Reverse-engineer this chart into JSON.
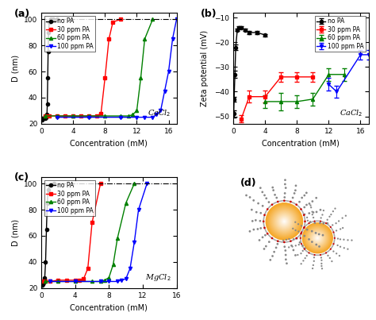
{
  "panel_a": {
    "title": "(a)",
    "xlabel": "Concentration (mM)",
    "ylabel": "D (nm)",
    "xlim": [
      0,
      17
    ],
    "ylim": [
      20,
      105
    ],
    "yticks": [
      20,
      40,
      60,
      80,
      100
    ],
    "xticks": [
      0,
      4,
      8,
      12,
      16
    ],
    "hline": 100,
    "label": "CaCl$_2$",
    "series": {
      "no_PA": {
        "color": "black",
        "marker": "o",
        "x": [
          0.05,
          0.1,
          0.2,
          0.3,
          0.5,
          0.6,
          0.7,
          0.75,
          0.8,
          0.85,
          0.9,
          1.0,
          1.2,
          1.5,
          2.0
        ],
        "y": [
          24,
          23,
          24,
          24,
          24,
          25,
          27,
          35,
          55,
          75,
          90,
          98,
          100,
          100,
          100
        ]
      },
      "30ppm": {
        "color": "red",
        "marker": "s",
        "x": [
          0.5,
          1.0,
          2.0,
          3.0,
          4.0,
          5.0,
          6.0,
          7.0,
          7.5,
          8.0,
          8.5,
          9.0,
          10.0
        ],
        "y": [
          26,
          26,
          26,
          26,
          26,
          26,
          26,
          26,
          28,
          55,
          85,
          98,
          100
        ]
      },
      "60ppm": {
        "color": "green",
        "marker": "^",
        "x": [
          0.5,
          2.0,
          4.0,
          6.0,
          8.0,
          10.0,
          11.0,
          11.5,
          12.0,
          12.5,
          13.0,
          14.0
        ],
        "y": [
          26,
          26,
          26,
          26,
          26,
          26,
          26,
          27,
          30,
          55,
          85,
          100
        ]
      },
      "100ppm": {
        "color": "blue",
        "marker": "v",
        "x": [
          2.0,
          6.0,
          10.0,
          12.0,
          13.0,
          14.0,
          14.5,
          15.0,
          15.5,
          16.0,
          16.5,
          17.0
        ],
        "y": [
          25,
          25,
          25,
          25,
          25,
          25,
          27,
          30,
          45,
          60,
          85,
          100
        ]
      }
    }
  },
  "panel_b": {
    "title": "(b)",
    "xlabel": "Concentration (mM)",
    "ylabel": "Zeta potential (mV)",
    "xlim": [
      0,
      17
    ],
    "ylim": [
      -53,
      -8
    ],
    "yticks": [
      -50,
      -40,
      -30,
      -20,
      -10
    ],
    "yticklabels": [
      "-50",
      "-40",
      "-30",
      "-20",
      "-10"
    ],
    "xticks": [
      0,
      4,
      8,
      12,
      16
    ],
    "label": "CaCl$_2$",
    "series": {
      "no_PA": {
        "color": "black",
        "marker": "o",
        "x": [
          0.05,
          0.1,
          0.2,
          0.3,
          0.5,
          0.7,
          1.0,
          1.5,
          2.0,
          3.0,
          4.0
        ],
        "y": [
          -49,
          -43,
          -33,
          -22,
          -15,
          -14,
          -14,
          -15,
          -16,
          -16,
          -17
        ],
        "yerr": [
          1.5,
          1.0,
          1.5,
          1.0,
          0.5,
          0.5,
          0.5,
          0.5,
          0.5,
          0.5,
          0.5
        ]
      },
      "30ppm": {
        "color": "red",
        "marker": "s",
        "x": [
          1.0,
          2.0,
          4.0,
          6.0,
          8.0,
          10.0
        ],
        "y": [
          -51,
          -42,
          -42,
          -34,
          -34,
          -34
        ],
        "yerr": [
          1.5,
          2.5,
          2.5,
          2.0,
          2.0,
          2.0
        ]
      },
      "60ppm": {
        "color": "green",
        "marker": "^",
        "x": [
          4.0,
          6.0,
          8.0,
          10.0,
          12.0,
          14.0
        ],
        "y": [
          -44,
          -44,
          -44,
          -43,
          -33,
          -33
        ],
        "yerr": [
          2.5,
          3.5,
          2.5,
          2.5,
          2.5,
          2.5
        ]
      },
      "100ppm": {
        "color": "blue",
        "marker": "v",
        "x": [
          12.0,
          13.0,
          16.0,
          17.0
        ],
        "y": [
          -37,
          -40,
          -25,
          -25
        ],
        "yerr": [
          2.5,
          2.5,
          2.0,
          2.0
        ]
      }
    }
  },
  "panel_c": {
    "title": "(c)",
    "xlabel": "Concentration (mM)",
    "ylabel": "D (nm)",
    "xlim": [
      0,
      16
    ],
    "ylim": [
      20,
      105
    ],
    "yticks": [
      20,
      40,
      60,
      80,
      100
    ],
    "xticks": [
      0,
      4,
      8,
      12,
      16
    ],
    "hline": 100,
    "label": "MgCl$_2$",
    "series": {
      "no_PA": {
        "color": "black",
        "marker": "o",
        "x": [
          0.05,
          0.1,
          0.2,
          0.3,
          0.4,
          0.5,
          0.6,
          0.7,
          0.8,
          1.0,
          1.5
        ],
        "y": [
          22,
          22,
          23,
          24,
          28,
          40,
          65,
          85,
          95,
          99,
          100
        ]
      },
      "30ppm": {
        "color": "red",
        "marker": "s",
        "x": [
          0.2,
          0.5,
          1.0,
          2.0,
          3.0,
          4.0,
          4.5,
          5.0,
          5.5,
          6.0,
          7.0
        ],
        "y": [
          25,
          25,
          25,
          26,
          26,
          26,
          26,
          27,
          35,
          70,
          100
        ]
      },
      "60ppm": {
        "color": "green",
        "marker": "^",
        "x": [
          0.5,
          2.0,
          4.0,
          6.0,
          7.0,
          7.5,
          8.0,
          8.5,
          9.0,
          10.0,
          11.0
        ],
        "y": [
          25,
          25,
          25,
          25,
          25,
          26,
          28,
          38,
          58,
          85,
          100
        ]
      },
      "100ppm": {
        "color": "blue",
        "marker": "v",
        "x": [
          1.0,
          4.0,
          7.0,
          8.0,
          9.0,
          9.5,
          10.0,
          10.5,
          11.0,
          11.5,
          12.5
        ],
        "y": [
          25,
          25,
          25,
          25,
          25,
          26,
          27,
          35,
          55,
          80,
          100
        ]
      }
    }
  },
  "legend_labels": [
    "no PA",
    "30 ppm PA",
    "60 ppm PA",
    "100 ppm PA"
  ],
  "colors": [
    "black",
    "red",
    "green",
    "blue"
  ],
  "markers": [
    "o",
    "s",
    "^",
    "v"
  ]
}
